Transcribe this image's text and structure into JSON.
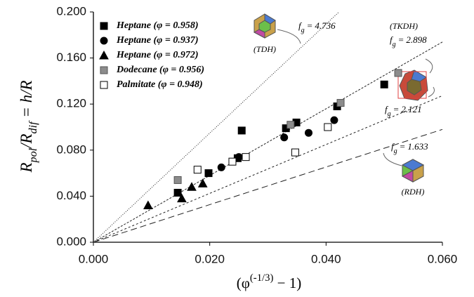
{
  "chart_data": {
    "type": "scatter",
    "xlabel": [
      {
        "text": "(φ"
      },
      {
        "text": "(-1/3)",
        "sup": true
      },
      {
        "text": " − 1)"
      }
    ],
    "ylabel": [
      {
        "text": "R"
      },
      {
        "text": "pol",
        "sub": true
      },
      {
        "text": "/R"
      },
      {
        "text": "dif",
        "sub": true
      },
      {
        "text": " = h/R"
      }
    ],
    "xlim": [
      0,
      0.06
    ],
    "ylim": [
      0,
      0.2
    ],
    "xticks": [
      {
        "value": 0,
        "label": "0.000"
      },
      {
        "value": 0.02,
        "label": "0.020"
      },
      {
        "value": 0.04,
        "label": "0.040"
      },
      {
        "value": 0.06,
        "label": "0.060"
      }
    ],
    "yticks": [
      {
        "value": 0,
        "label": "0.000"
      },
      {
        "value": 0.04,
        "label": "0.040"
      },
      {
        "value": 0.08,
        "label": "0.080"
      },
      {
        "value": 0.12,
        "label": "0.120"
      },
      {
        "value": 0.16,
        "label": "0.160"
      },
      {
        "value": 0.2,
        "label": "0.200"
      }
    ],
    "series": [
      {
        "name": "Heptane (φ = 0.958)",
        "marker": "square",
        "color": "#000000",
        "fill": "#000000",
        "x": [
          0.0145,
          0.0198,
          0.0248,
          0.0255,
          0.0331,
          0.0349,
          0.0419,
          0.05
        ],
        "values": [
          0.043,
          0.06,
          0.073,
          0.097,
          0.099,
          0.104,
          0.118,
          0.137
        ]
      },
      {
        "name": "Heptane (φ = 0.937)",
        "marker": "circle",
        "color": "#000000",
        "fill": "#000000",
        "x": [
          0.022,
          0.025,
          0.0328,
          0.037,
          0.0414
        ],
        "values": [
          0.065,
          0.074,
          0.091,
          0.095,
          0.106
        ]
      },
      {
        "name": "Heptane (φ = 0.972)",
        "marker": "triangle",
        "color": "#000000",
        "fill": "#000000",
        "x": [
          0.0094,
          0.0152,
          0.0169,
          0.0188
        ],
        "values": [
          0.032,
          0.038,
          0.048,
          0.051
        ]
      },
      {
        "name": "Dodecane (φ = 0.956)",
        "marker": "square",
        "color": "#555555",
        "fill": "#8c8c8c",
        "x": [
          0.0145,
          0.0339,
          0.0425,
          0.0524
        ],
        "values": [
          0.054,
          0.102,
          0.121,
          0.147
        ]
      },
      {
        "name": "Palmitate (φ = 0.948)",
        "marker": "square",
        "color": "#000000",
        "fill": "#ffffff",
        "x": [
          0.0179,
          0.0239,
          0.0262,
          0.0347,
          0.0403
        ],
        "values": [
          0.063,
          0.07,
          0.074,
          0.078,
          0.1
        ]
      }
    ],
    "reference_lines": [
      {
        "symbol": "f",
        "subscript": "g",
        "equals": "=",
        "slope": 4.736,
        "dash": "1,2",
        "annotation": "(TDH)"
      },
      {
        "symbol": "f",
        "subscript": "g",
        "equals": "=",
        "slope": 2.898,
        "dash": "3,2",
        "annotation": "(TKDH)"
      },
      {
        "symbol": "f",
        "subscript": "g",
        "equals": "=",
        "slope": 2.121,
        "dash": "3,3"
      },
      {
        "symbol": "f",
        "subscript": "g",
        "equals": "=",
        "slope": 1.633,
        "dash": "9,5",
        "annotation": "(RDH)"
      }
    ]
  }
}
